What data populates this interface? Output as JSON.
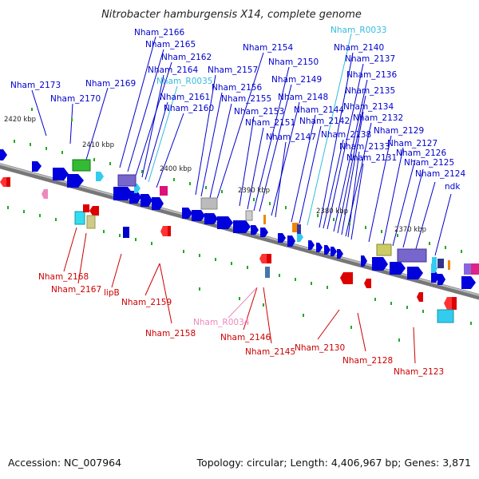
{
  "title": "Nitrobacter hamburgensis X14, complete genome",
  "footer": {
    "accession_label": "Accession:",
    "accession": "NC_007964",
    "topology_label": "Topology:",
    "topology": "circular",
    "length_label": "Length:",
    "length": "4,406,967 bp",
    "genes_label": "Genes:",
    "genes": "3,871"
  },
  "colors": {
    "forward_label": "#0000cc",
    "reverse_label": "#cc0000",
    "rna_forward_label": "#33bbdd",
    "rna_reverse_label": "#ee88bb",
    "backbone": "#777777",
    "tick": "#22aa22"
  },
  "kbp_labels": [
    "2420 kbp",
    "2410 kbp",
    "2400 kbp",
    "2390 kbp",
    "2380 kbp",
    "2370 kbp"
  ],
  "genes_top": [
    "Nham_2173",
    "Nham_2170",
    "Nham_2169",
    "Nham_2166",
    "Nham_2165",
    "Nham_2162",
    "Nham_2164",
    "Nham_R0035",
    "Nham_2161",
    "Nham_2160",
    "Nham_2157",
    "Nham_2156",
    "Nham_2155",
    "Nham_2154",
    "Nham_2153",
    "Nham_2151",
    "Nham_2150",
    "Nham_2149",
    "Nham_2148",
    "Nham_2147",
    "Nham_2144",
    "Nham_2142",
    "Nham_R0033",
    "Nham_2140",
    "Nham_2137",
    "Nham_2136",
    "Nham_2135",
    "Nham_2134",
    "Nham_2132",
    "Nham_2138",
    "Nham_2133",
    "Nham_2131",
    "Nham_2129",
    "Nham_2127",
    "Nham_2126",
    "Nham_2125",
    "Nham_2124",
    "ndk"
  ],
  "genes_bottom": [
    "Nham_2168",
    "Nham_2167",
    "lipB",
    "Nham_2159",
    "Nham_2158",
    "Nham_R0034",
    "Nham_2146",
    "Nham_2145",
    "Nham_2130",
    "Nham_2128",
    "Nham_2123"
  ]
}
